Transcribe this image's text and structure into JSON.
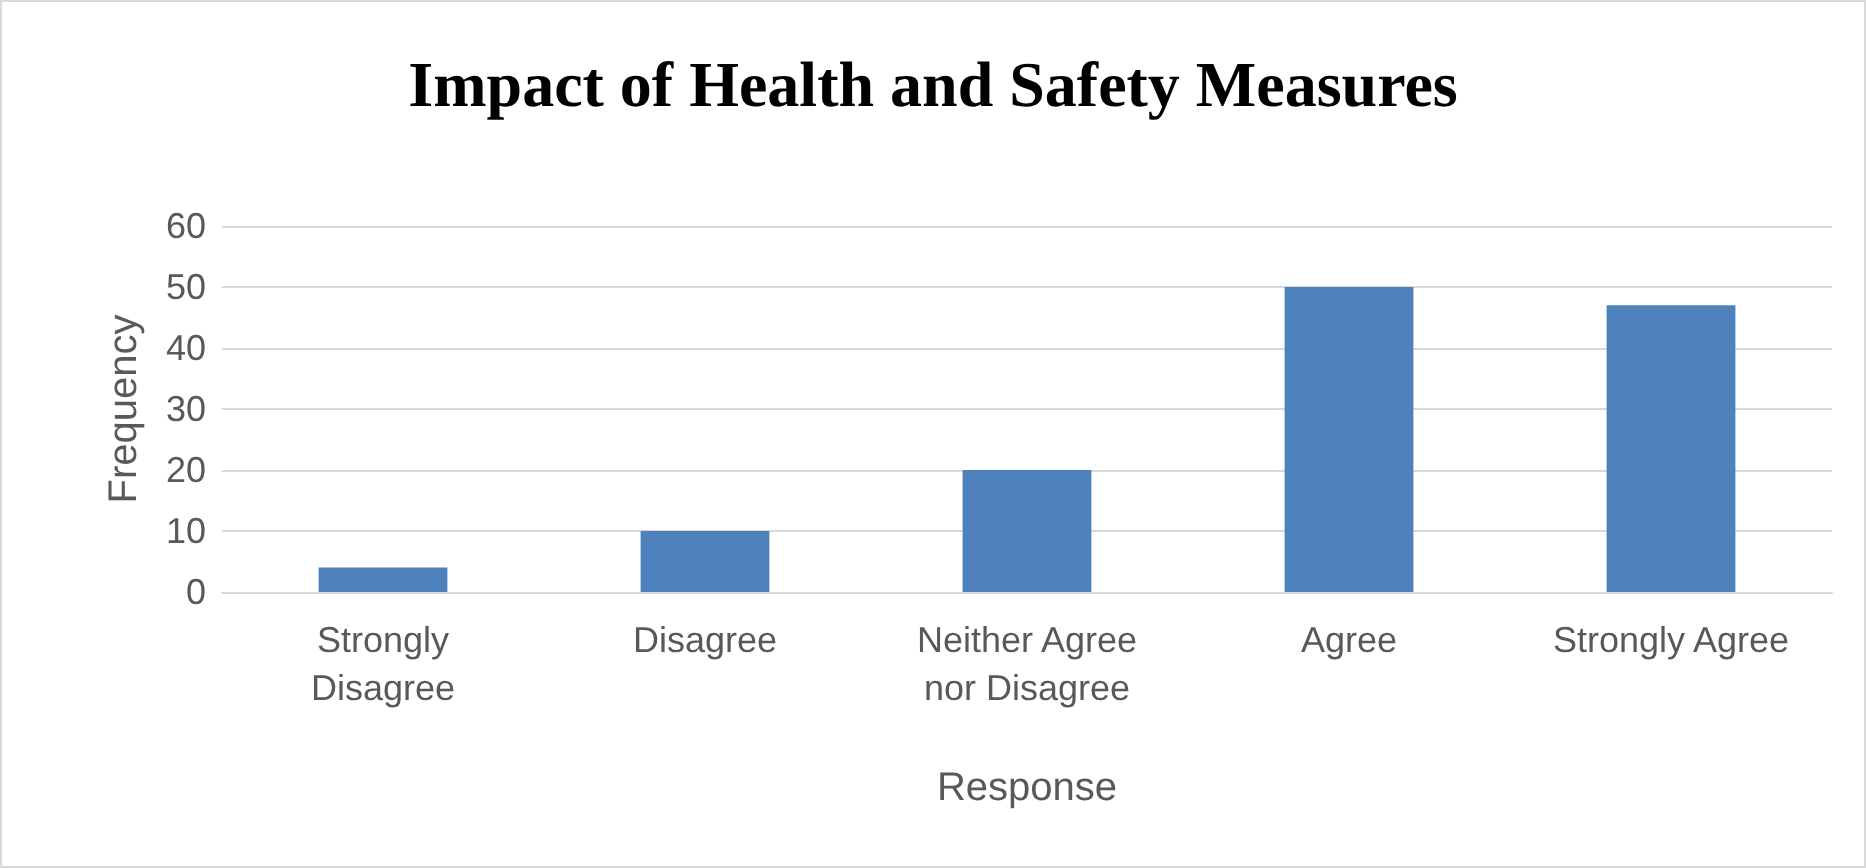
{
  "chart_data": {
    "type": "bar",
    "title": "Impact of Health and Safety Measures",
    "xlabel": "Response",
    "ylabel": "Frequency",
    "categories": [
      "Strongly\nDisagree",
      "Disagree",
      "Neither Agree\nnor Disagree",
      "Agree",
      "Strongly Agree"
    ],
    "values": [
      4,
      10,
      20,
      50,
      47
    ],
    "color": "#4f81bd",
    "ylim": [
      0,
      60
    ],
    "yticks": [
      0,
      10,
      20,
      30,
      40,
      50,
      60
    ],
    "grid": "y"
  }
}
